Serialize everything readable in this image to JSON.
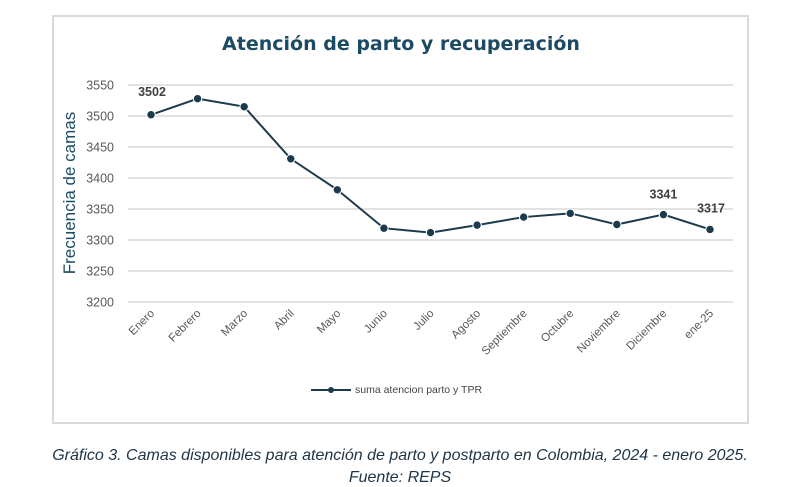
{
  "chart_data": {
    "type": "line",
    "title": "Atención de parto y recuperación",
    "xlabel": "",
    "ylabel": "Frecuencia de camas",
    "ylim": [
      3200,
      3550
    ],
    "yticks": [
      3200,
      3250,
      3300,
      3350,
      3400,
      3450,
      3500,
      3550
    ],
    "grid": true,
    "legend_position": "bottom",
    "categories": [
      "Enero",
      "Febrero",
      "Marzo",
      "Abril",
      "Mayo",
      "Junio",
      "Julio",
      "Agosto",
      "Septiembre",
      "Octubre",
      "Noviembre",
      "Diciembre",
      "ene-25"
    ],
    "series": [
      {
        "name": "suma atencion parto y TPR",
        "color": "#1b3a4b",
        "values": [
          3502,
          3528,
          3515,
          3431,
          3381,
          3319,
          3312,
          3324,
          3337,
          3343,
          3325,
          3341,
          3317
        ]
      }
    ],
    "data_labels": [
      {
        "index": 0,
        "text": "3502"
      },
      {
        "index": 11,
        "text": "3341"
      },
      {
        "index": 12,
        "text": "3317"
      }
    ]
  },
  "caption": {
    "line1": "Gráfico 3.  Camas disponibles para atención de parto y postparto en Colombia, 2024 - enero 2025.",
    "line2": "Fuente: REPS"
  }
}
